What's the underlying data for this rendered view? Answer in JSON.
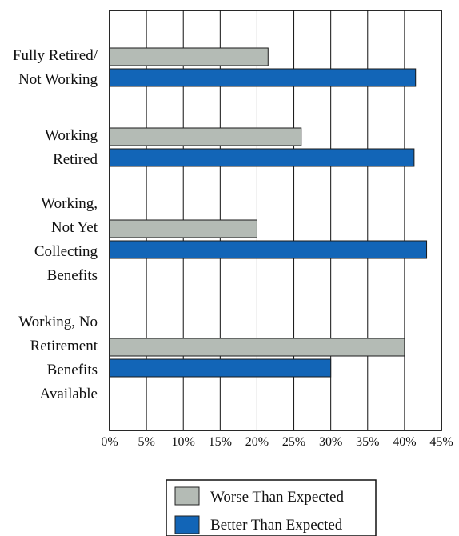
{
  "chart_data": {
    "type": "bar",
    "orientation": "horizontal",
    "categories": [
      [
        "Fully Retired/",
        "Not Working"
      ],
      [
        "Working",
        "Retired"
      ],
      [
        "Working,",
        "Not Yet",
        "Collecting",
        "Benefits"
      ],
      [
        "Working, No",
        "Retirement",
        "Benefits",
        "Available"
      ]
    ],
    "series": [
      {
        "name": "Worse Than Expected",
        "color": "#b4bbb5",
        "values": [
          21.5,
          26,
          20,
          40
        ]
      },
      {
        "name": "Better Than Expected",
        "color": "#1265b7",
        "values": [
          41.5,
          41.3,
          43,
          30
        ]
      }
    ],
    "x_ticks": [
      "0%",
      "5%",
      "10%",
      "15%",
      "20%",
      "25%",
      "30%",
      "35%",
      "40%",
      "45%"
    ],
    "xlim": [
      0,
      45
    ],
    "title": "",
    "xlabel": "",
    "ylabel": "",
    "grid": "vertical",
    "legend_position": "bottom-center"
  }
}
